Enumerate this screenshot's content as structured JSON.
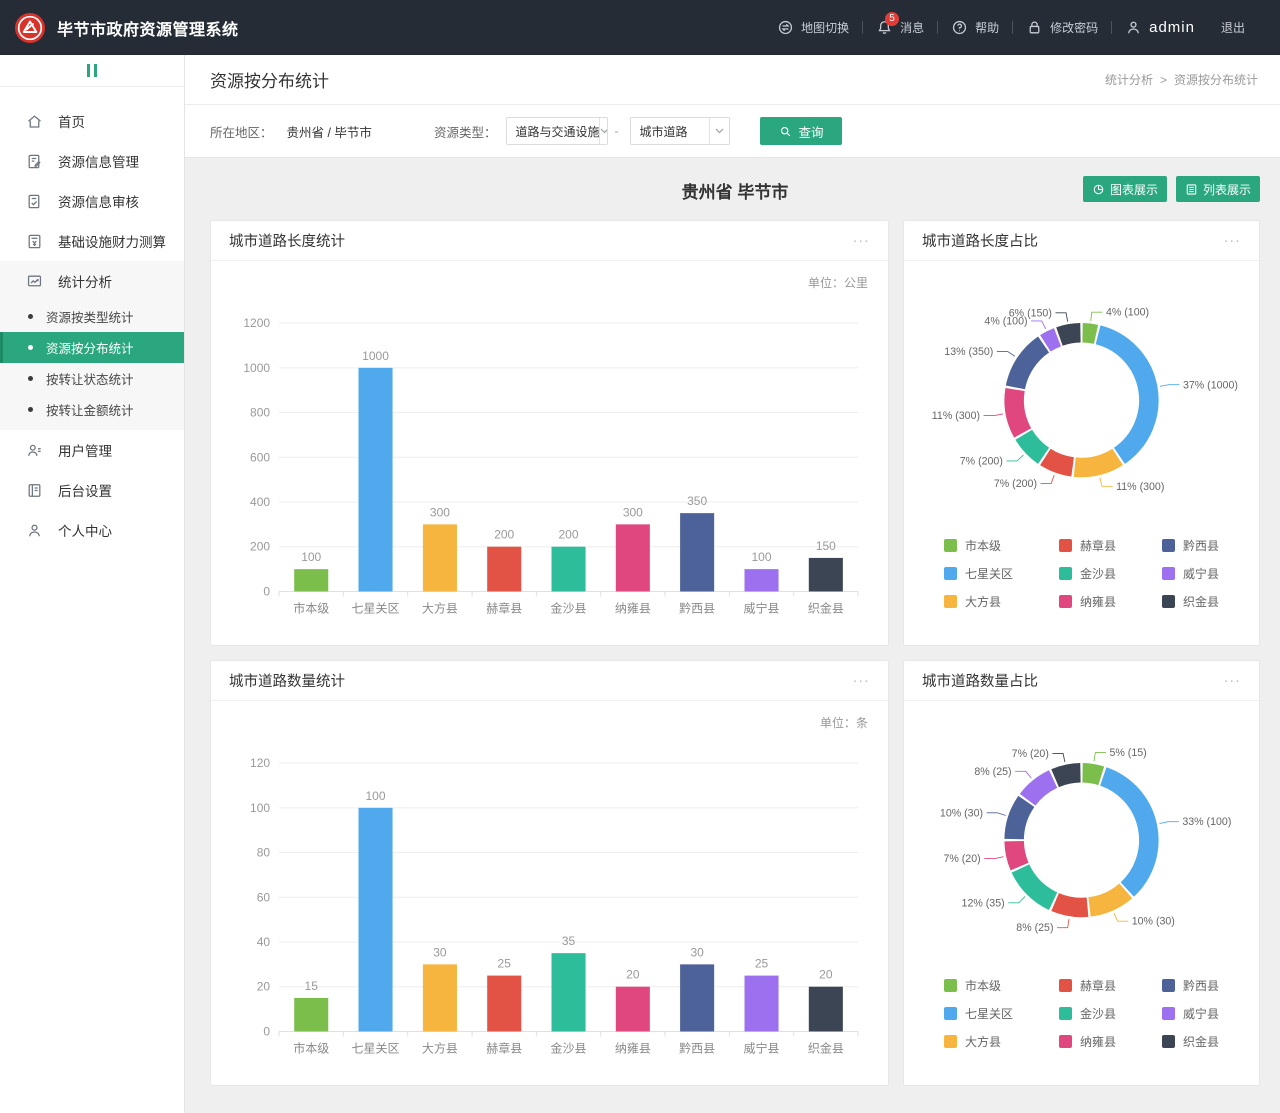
{
  "header": {
    "title": "毕节市政府资源管理系统",
    "logo_icon": "bijie-logo-icon",
    "nav": [
      {
        "id": "map-switch",
        "label": "地图切换",
        "icon": "map-switch-icon",
        "divider_after": true
      },
      {
        "id": "messages",
        "label": "消息",
        "icon": "bell-icon",
        "badge": "5",
        "divider_after": true
      },
      {
        "id": "help",
        "label": "帮助",
        "icon": "help-icon",
        "divider_after": true
      },
      {
        "id": "change-password",
        "label": "修改密码",
        "icon": "lock-icon",
        "divider_after": true
      },
      {
        "id": "admin",
        "label": "admin",
        "icon": "user-icon"
      },
      {
        "id": "logout",
        "label": "退出"
      }
    ]
  },
  "sidebar": {
    "collapse_icon": "sidebar-collapse-icon",
    "items": [
      {
        "id": "home",
        "label": "首页",
        "icon": "home-icon"
      },
      {
        "id": "resource-info-management",
        "label": "资源信息管理",
        "icon": "doc-edit-icon"
      },
      {
        "id": "resource-info-review",
        "label": "资源信息审核",
        "icon": "doc-check-icon"
      },
      {
        "id": "infrastructure-finance-calc",
        "label": "基础设施财力测算",
        "icon": "calculator-icon"
      },
      {
        "id": "statistics-analysis",
        "label": "统计分析",
        "icon": "stats-icon",
        "expanded": true,
        "children": [
          {
            "id": "by-type",
            "label": "资源按类型统计"
          },
          {
            "id": "by-distribution",
            "label": "资源按分布统计",
            "active": true
          },
          {
            "id": "by-transfer-status",
            "label": "按转让状态统计"
          },
          {
            "id": "by-transfer-amount",
            "label": "按转让金额统计"
          }
        ]
      },
      {
        "id": "user-management",
        "label": "用户管理",
        "icon": "users-icon"
      },
      {
        "id": "backend-settings",
        "label": "后台设置",
        "icon": "settings-icon"
      },
      {
        "id": "personal-center",
        "label": "个人中心",
        "icon": "person-icon"
      }
    ]
  },
  "page": {
    "title": "资源按分布统计",
    "breadcrumb": [
      "统计分析",
      "资源按分布统计"
    ],
    "breadcrumb_separator": ">",
    "filters": {
      "region_label": "所在地区：",
      "region_value": "贵州省 / 毕节市",
      "type_label": "资源类型：",
      "type_select_primary": "道路与交通设施",
      "type_select_secondary": "城市道路",
      "range_separator": "-",
      "search_button": "查询"
    },
    "section_title": "贵州省 毕节市",
    "view_buttons": [
      {
        "id": "chart-view",
        "label": "图表展示",
        "icon": "pie-icon"
      },
      {
        "id": "list-view",
        "label": "列表展示",
        "icon": "list-icon"
      }
    ]
  },
  "colors": {
    "accent": "#2aa77f",
    "header_bg": "#252c35",
    "logo_red": "#d8332b",
    "badge_red": "#e23c39",
    "palette": [
      "#7cbe4b",
      "#4fa9ec",
      "#f5b53e",
      "#e25345",
      "#2ebd9b",
      "#e0477f",
      "#4d6298",
      "#9c70ee",
      "#3c4554"
    ]
  },
  "chart_data": [
    {
      "id": "road-length-bar",
      "type": "bar",
      "title": "城市道路长度统计",
      "unit_label": "单位：公里",
      "categories": [
        "市本级",
        "七星关区",
        "大方县",
        "赫章县",
        "金沙县",
        "纳雍县",
        "黔西县",
        "威宁县",
        "织金县"
      ],
      "values": [
        100,
        1000,
        300,
        200,
        200,
        300,
        350,
        100,
        150
      ],
      "ylim": [
        0,
        1200
      ],
      "ystep": 200,
      "grid": true,
      "value_labels": true
    },
    {
      "id": "road-length-donut",
      "type": "donut",
      "title": "城市道路长度占比",
      "legend_position": "bottom",
      "segments": [
        {
          "name": "市本级",
          "value": 100,
          "percent": 4
        },
        {
          "name": "七星关区",
          "value": 1000,
          "percent": 37
        },
        {
          "name": "大方县",
          "value": 300,
          "percent": 11
        },
        {
          "name": "赫章县",
          "value": 200,
          "percent": 7
        },
        {
          "name": "金沙县",
          "value": 200,
          "percent": 7
        },
        {
          "name": "纳雍县",
          "value": 300,
          "percent": 11
        },
        {
          "name": "黔西县",
          "value": 350,
          "percent": 13
        },
        {
          "name": "威宁县",
          "value": 100,
          "percent": 4
        },
        {
          "name": "织金县",
          "value": 150,
          "percent": 6
        }
      ]
    },
    {
      "id": "road-count-bar",
      "type": "bar",
      "title": "城市道路数量统计",
      "unit_label": "单位：条",
      "categories": [
        "市本级",
        "七星关区",
        "大方县",
        "赫章县",
        "金沙县",
        "纳雍县",
        "黔西县",
        "威宁县",
        "织金县"
      ],
      "values": [
        15,
        100,
        30,
        25,
        35,
        20,
        30,
        25,
        20
      ],
      "ylim": [
        0,
        120
      ],
      "ystep": 20,
      "grid": true,
      "value_labels": true
    },
    {
      "id": "road-count-donut",
      "type": "donut",
      "title": "城市道路数量占比",
      "legend_position": "bottom",
      "segments": [
        {
          "name": "市本级",
          "value": 15,
          "percent": 5
        },
        {
          "name": "七星关区",
          "value": 100,
          "percent": 33
        },
        {
          "name": "大方县",
          "value": 30,
          "percent": 10
        },
        {
          "name": "赫章县",
          "value": 25,
          "percent": 8
        },
        {
          "name": "金沙县",
          "value": 35,
          "percent": 12
        },
        {
          "name": "纳雍县",
          "value": 20,
          "percent": 7
        },
        {
          "name": "黔西县",
          "value": 30,
          "percent": 10
        },
        {
          "name": "威宁县",
          "value": 25,
          "percent": 8
        },
        {
          "name": "织金县",
          "value": 20,
          "percent": 7
        }
      ]
    }
  ]
}
